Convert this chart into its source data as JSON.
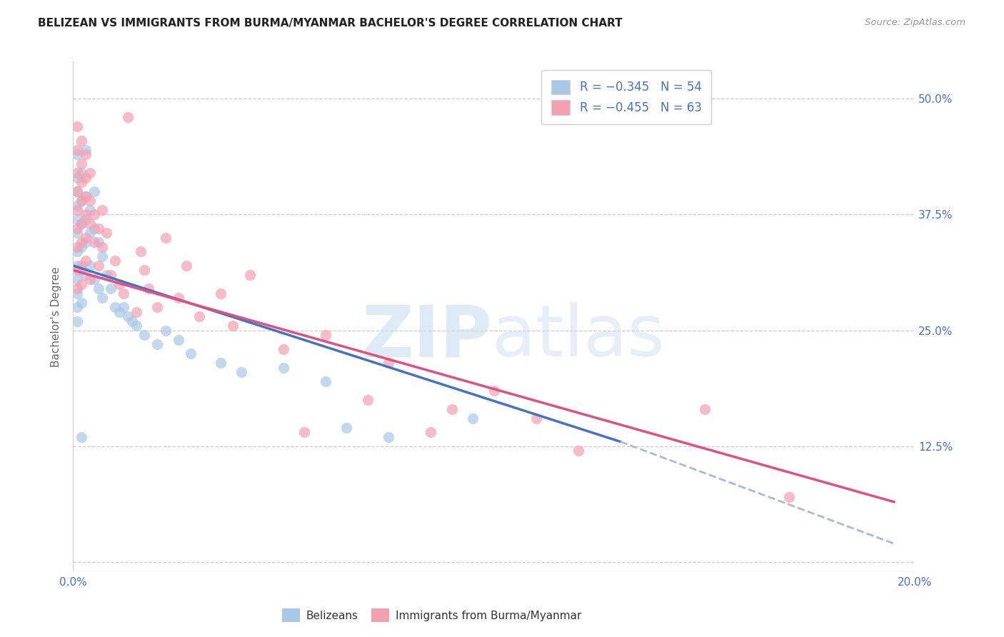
{
  "title": "BELIZEAN VS IMMIGRANTS FROM BURMA/MYANMAR BACHELOR'S DEGREE CORRELATION CHART",
  "source": "Source: ZipAtlas.com",
  "ylabel": "Bachelor's Degree",
  "ytick_values": [
    0.0,
    0.125,
    0.25,
    0.375,
    0.5
  ],
  "ytick_labels_right": [
    "",
    "12.5%",
    "25.0%",
    "37.5%",
    "50.0%"
  ],
  "xlim": [
    0.0,
    0.2
  ],
  "ylim": [
    -0.01,
    0.54
  ],
  "blue_color": "#a8c8e8",
  "pink_color": "#f4a0b0",
  "blue_line_color": "#4472c4",
  "pink_line_color": "#e05080",
  "dashed_line_color": "#aabbcc",
  "blue_scatter": [
    [
      0.001,
      0.44
    ],
    [
      0.001,
      0.415
    ],
    [
      0.001,
      0.4
    ],
    [
      0.001,
      0.385
    ],
    [
      0.001,
      0.37
    ],
    [
      0.001,
      0.355
    ],
    [
      0.001,
      0.335
    ],
    [
      0.001,
      0.32
    ],
    [
      0.001,
      0.305
    ],
    [
      0.001,
      0.29
    ],
    [
      0.001,
      0.275
    ],
    [
      0.001,
      0.26
    ],
    [
      0.002,
      0.42
    ],
    [
      0.002,
      0.39
    ],
    [
      0.002,
      0.365
    ],
    [
      0.002,
      0.34
    ],
    [
      0.002,
      0.315
    ],
    [
      0.002,
      0.28
    ],
    [
      0.003,
      0.445
    ],
    [
      0.003,
      0.395
    ],
    [
      0.003,
      0.37
    ],
    [
      0.003,
      0.345
    ],
    [
      0.003,
      0.31
    ],
    [
      0.004,
      0.38
    ],
    [
      0.004,
      0.355
    ],
    [
      0.004,
      0.32
    ],
    [
      0.005,
      0.4
    ],
    [
      0.005,
      0.36
    ],
    [
      0.005,
      0.305
    ],
    [
      0.006,
      0.345
    ],
    [
      0.006,
      0.295
    ],
    [
      0.007,
      0.33
    ],
    [
      0.007,
      0.285
    ],
    [
      0.008,
      0.31
    ],
    [
      0.009,
      0.295
    ],
    [
      0.01,
      0.275
    ],
    [
      0.011,
      0.27
    ],
    [
      0.012,
      0.275
    ],
    [
      0.013,
      0.265
    ],
    [
      0.014,
      0.26
    ],
    [
      0.015,
      0.255
    ],
    [
      0.017,
      0.245
    ],
    [
      0.02,
      0.235
    ],
    [
      0.022,
      0.25
    ],
    [
      0.025,
      0.24
    ],
    [
      0.028,
      0.225
    ],
    [
      0.035,
      0.215
    ],
    [
      0.04,
      0.205
    ],
    [
      0.05,
      0.21
    ],
    [
      0.06,
      0.195
    ],
    [
      0.065,
      0.145
    ],
    [
      0.075,
      0.135
    ],
    [
      0.095,
      0.155
    ],
    [
      0.002,
      0.135
    ]
  ],
  "pink_scatter": [
    [
      0.001,
      0.47
    ],
    [
      0.001,
      0.445
    ],
    [
      0.001,
      0.42
    ],
    [
      0.001,
      0.4
    ],
    [
      0.001,
      0.38
    ],
    [
      0.001,
      0.36
    ],
    [
      0.001,
      0.34
    ],
    [
      0.001,
      0.315
    ],
    [
      0.001,
      0.295
    ],
    [
      0.002,
      0.455
    ],
    [
      0.002,
      0.43
    ],
    [
      0.002,
      0.41
    ],
    [
      0.002,
      0.39
    ],
    [
      0.002,
      0.365
    ],
    [
      0.002,
      0.345
    ],
    [
      0.002,
      0.32
    ],
    [
      0.002,
      0.3
    ],
    [
      0.003,
      0.44
    ],
    [
      0.003,
      0.415
    ],
    [
      0.003,
      0.395
    ],
    [
      0.003,
      0.375
    ],
    [
      0.003,
      0.35
    ],
    [
      0.003,
      0.325
    ],
    [
      0.004,
      0.42
    ],
    [
      0.004,
      0.39
    ],
    [
      0.004,
      0.365
    ],
    [
      0.004,
      0.305
    ],
    [
      0.005,
      0.375
    ],
    [
      0.005,
      0.345
    ],
    [
      0.006,
      0.36
    ],
    [
      0.006,
      0.32
    ],
    [
      0.007,
      0.38
    ],
    [
      0.007,
      0.34
    ],
    [
      0.008,
      0.355
    ],
    [
      0.009,
      0.31
    ],
    [
      0.01,
      0.325
    ],
    [
      0.011,
      0.3
    ],
    [
      0.012,
      0.29
    ],
    [
      0.013,
      0.48
    ],
    [
      0.015,
      0.27
    ],
    [
      0.016,
      0.335
    ],
    [
      0.017,
      0.315
    ],
    [
      0.018,
      0.295
    ],
    [
      0.02,
      0.275
    ],
    [
      0.022,
      0.35
    ],
    [
      0.025,
      0.285
    ],
    [
      0.027,
      0.32
    ],
    [
      0.03,
      0.265
    ],
    [
      0.035,
      0.29
    ],
    [
      0.038,
      0.255
    ],
    [
      0.042,
      0.31
    ],
    [
      0.05,
      0.23
    ],
    [
      0.055,
      0.14
    ],
    [
      0.06,
      0.245
    ],
    [
      0.07,
      0.175
    ],
    [
      0.075,
      0.215
    ],
    [
      0.085,
      0.14
    ],
    [
      0.09,
      0.165
    ],
    [
      0.1,
      0.185
    ],
    [
      0.11,
      0.155
    ],
    [
      0.12,
      0.12
    ],
    [
      0.15,
      0.165
    ],
    [
      0.17,
      0.07
    ]
  ],
  "blue_line": {
    "x0": 0.0,
    "y0": 0.32,
    "x1": 0.13,
    "y1": 0.13
  },
  "pink_line": {
    "x0": 0.0,
    "y0": 0.315,
    "x1": 0.195,
    "y1": 0.065
  },
  "dashed_line": {
    "x0": 0.13,
    "y0": 0.13,
    "x1": 0.195,
    "y1": 0.02
  }
}
